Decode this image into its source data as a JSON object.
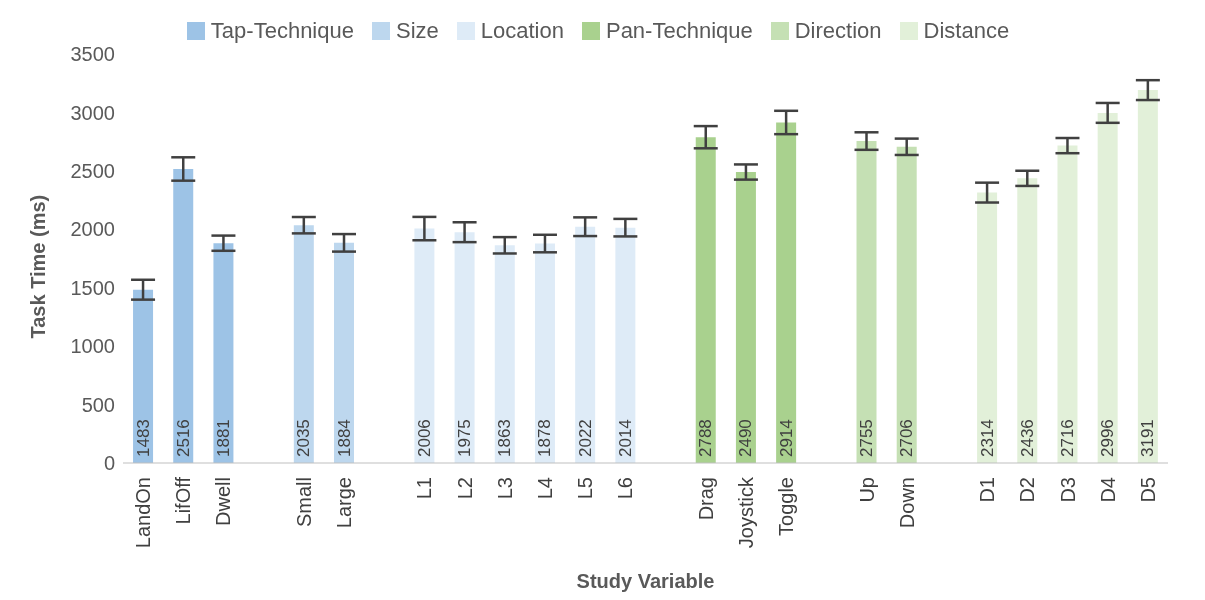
{
  "chart_data": {
    "type": "bar",
    "xlabel": "Study Variable",
    "ylabel": "Task Time (ms)",
    "categories": [
      "LandOn",
      "LifOff",
      "Dwell",
      null,
      "Small",
      "Large",
      null,
      "L1",
      "L2",
      "L3",
      "L4",
      "L5",
      "L6",
      null,
      "Drag",
      "Joystick",
      "Toggle",
      null,
      "Up",
      "Down",
      null,
      "D1",
      "D2",
      "D3",
      "D4",
      "D5"
    ],
    "series": [
      {
        "name": "Tap-Technique",
        "color": "#9dc3e6",
        "values": [
          1483,
          2516,
          1881,
          null,
          null,
          null,
          null,
          null,
          null,
          null,
          null,
          null,
          null,
          null,
          null,
          null,
          null,
          null,
          null,
          null,
          null,
          null,
          null,
          null,
          null,
          null
        ],
        "errors": [
          85,
          100,
          65,
          null,
          null,
          null,
          null,
          null,
          null,
          null,
          null,
          null,
          null,
          null,
          null,
          null,
          null,
          null,
          null,
          null,
          null,
          null,
          null,
          null,
          null,
          null
        ]
      },
      {
        "name": "Size",
        "color": "#bdd7ee",
        "values": [
          null,
          null,
          null,
          null,
          2035,
          1884,
          null,
          null,
          null,
          null,
          null,
          null,
          null,
          null,
          null,
          null,
          null,
          null,
          null,
          null,
          null,
          null,
          null,
          null,
          null,
          null
        ],
        "errors": [
          null,
          null,
          null,
          null,
          70,
          75,
          null,
          null,
          null,
          null,
          null,
          null,
          null,
          null,
          null,
          null,
          null,
          null,
          null,
          null,
          null,
          null,
          null,
          null,
          null,
          null
        ]
      },
      {
        "name": "Location",
        "color": "#deebf7",
        "values": [
          null,
          null,
          null,
          null,
          null,
          null,
          null,
          2006,
          1975,
          1863,
          1878,
          2022,
          2014,
          null,
          null,
          null,
          null,
          null,
          null,
          null,
          null,
          null,
          null,
          null,
          null,
          null
        ],
        "errors": [
          null,
          null,
          null,
          null,
          null,
          null,
          null,
          100,
          85,
          70,
          75,
          80,
          75,
          null,
          null,
          null,
          null,
          null,
          null,
          null,
          null,
          null,
          null,
          null,
          null,
          null
        ]
      },
      {
        "name": "Pan-Technique",
        "color": "#a9d18e",
        "values": [
          null,
          null,
          null,
          null,
          null,
          null,
          null,
          null,
          null,
          null,
          null,
          null,
          null,
          null,
          2788,
          2490,
          2914,
          null,
          null,
          null,
          null,
          null,
          null,
          null,
          null,
          null
        ],
        "errors": [
          null,
          null,
          null,
          null,
          null,
          null,
          null,
          null,
          null,
          null,
          null,
          null,
          null,
          null,
          95,
          65,
          100,
          null,
          null,
          null,
          null,
          null,
          null,
          null,
          null,
          null
        ]
      },
      {
        "name": "Direction",
        "color": "#c5e0b4",
        "values": [
          null,
          null,
          null,
          null,
          null,
          null,
          null,
          null,
          null,
          null,
          null,
          null,
          null,
          null,
          null,
          null,
          null,
          null,
          2755,
          2706,
          null,
          null,
          null,
          null,
          null,
          null
        ],
        "errors": [
          null,
          null,
          null,
          null,
          null,
          null,
          null,
          null,
          null,
          null,
          null,
          null,
          null,
          null,
          null,
          null,
          null,
          null,
          75,
          70,
          null,
          null,
          null,
          null,
          null,
          null
        ]
      },
      {
        "name": "Distance",
        "color": "#e2f0d9",
        "values": [
          null,
          null,
          null,
          null,
          null,
          null,
          null,
          null,
          null,
          null,
          null,
          null,
          null,
          null,
          null,
          null,
          null,
          null,
          null,
          null,
          null,
          2314,
          2436,
          2716,
          2996,
          3191
        ],
        "errors": [
          null,
          null,
          null,
          null,
          null,
          null,
          null,
          null,
          null,
          null,
          null,
          null,
          null,
          null,
          null,
          null,
          null,
          null,
          null,
          null,
          null,
          85,
          65,
          65,
          85,
          85
        ]
      }
    ],
    "ylim": [
      0,
      3500
    ],
    "yticks": [
      0,
      500,
      1000,
      1500,
      2000,
      2500,
      3000,
      3500
    ],
    "grid": false,
    "legend": "top",
    "data_labels": true
  }
}
